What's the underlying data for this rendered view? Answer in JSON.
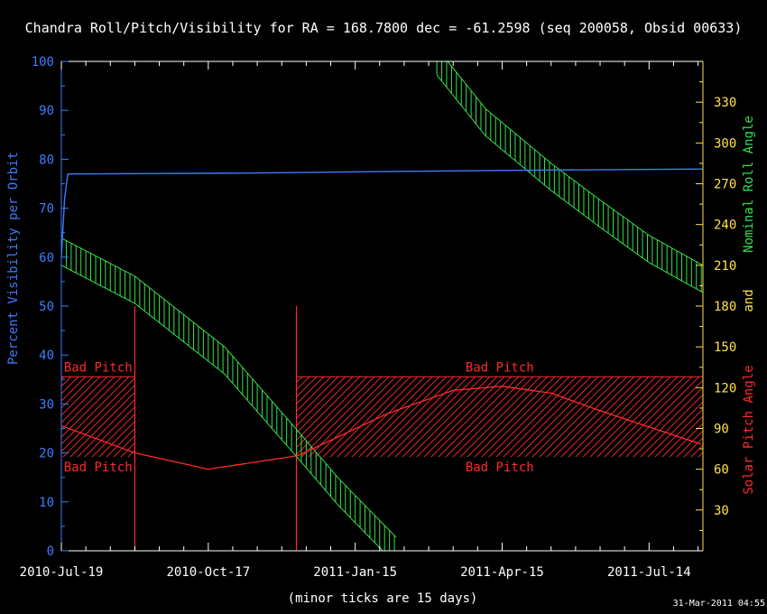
{
  "chart_data": {
    "type": "line",
    "title": "Chandra Roll/Pitch/Visibility for RA = 168.7800 dec = -61.2598 (seq 200058, Obsid 00633)",
    "left_axis": {
      "label": "Percent Visibility per Orbit",
      "color": "#3d7cff",
      "range": [
        0,
        100
      ],
      "ticks": [
        0,
        10,
        20,
        30,
        40,
        50,
        60,
        70,
        80,
        90,
        100
      ]
    },
    "right_axis": {
      "label_roll": "Nominal Roll Angle",
      "label_and": "and",
      "label_pitch": "Solar Pitch Angle",
      "roll_color": "#35e04a",
      "and_color": "#ffe14a",
      "pitch_color": "#ff2a2a",
      "tick_color": "#ffe14a",
      "range": [
        0,
        360
      ],
      "ticks": [
        30,
        60,
        90,
        120,
        150,
        180,
        210,
        240,
        270,
        300,
        330
      ]
    },
    "x_axis": {
      "start": "2010-07-19",
      "end": "2011-08-16",
      "tick_labels": [
        "2010-Jul-19",
        "2010-Oct-17",
        "2011-Jan-15",
        "2011-Apr-15",
        "2011-Jul-14"
      ],
      "tick_days": [
        0,
        90,
        180,
        270,
        360
      ],
      "minor_tick_days": 15,
      "note": "(minor ticks are 15 days)"
    },
    "visibility_series": {
      "name": "Percent Visibility per Orbit",
      "color": "#3d7cff",
      "x": [
        0,
        2,
        4,
        120,
        200,
        300,
        393
      ],
      "y": [
        60,
        72,
        77,
        77.2,
        77.5,
        77.8,
        78
      ]
    },
    "roll_band": {
      "name": "Nominal Roll Angle",
      "color": "#35e04a",
      "segments": [
        {
          "x": [
            0,
            45,
            100,
            145,
            170,
            205
          ],
          "y_center": [
            220,
            192,
            140,
            78,
            43,
            0
          ],
          "half_width": 10
        },
        {
          "x": [
            230,
            260,
            300,
            330,
            360,
            393
          ],
          "y_center": [
            360,
            315,
            275,
            248,
            222,
            200
          ],
          "half_width": 10
        }
      ]
    },
    "pitch_series": {
      "name": "Solar Pitch Angle",
      "color": "#ff2a2a",
      "x": [
        0,
        45,
        90,
        145,
        200,
        240,
        270,
        300,
        330,
        393
      ],
      "y": [
        92,
        72,
        60,
        70,
        101,
        118,
        121,
        116,
        103,
        78
      ]
    },
    "bad_pitch_regions": {
      "color": "#ff2a2a",
      "label": "Bad Pitch",
      "pitch_band": [
        69,
        128
      ],
      "hatched_x": [
        [
          0,
          45
        ],
        [
          144,
          393
        ]
      ],
      "markers_x": [
        45,
        144
      ],
      "marker_top": 180
    },
    "timestamp": "31-Mar-2011 04:55"
  }
}
